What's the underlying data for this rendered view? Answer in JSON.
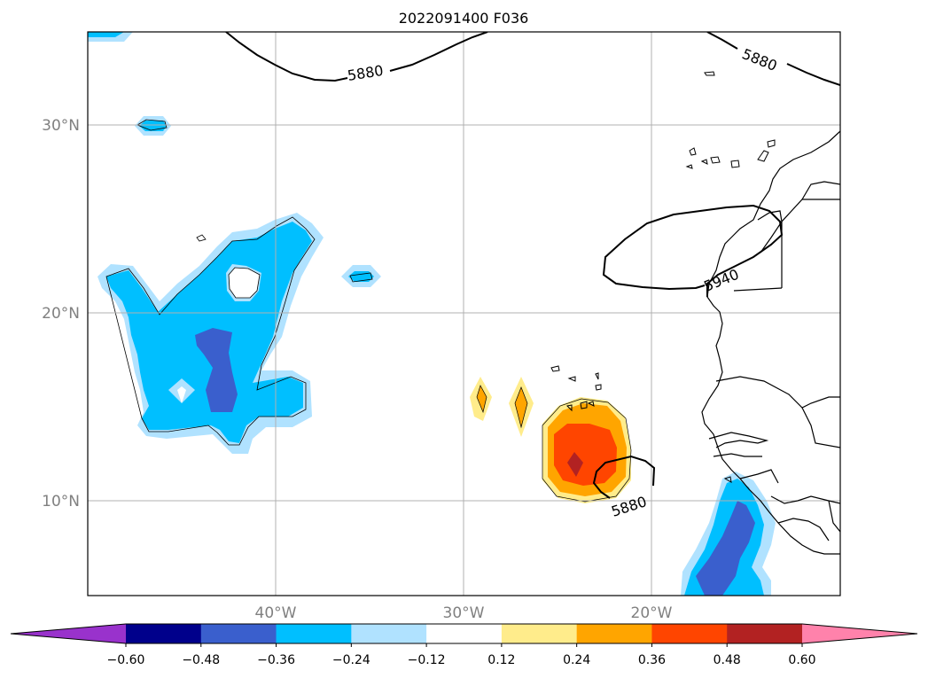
{
  "title": "2022091400 F036",
  "lat_labels": [
    "30°N",
    "20°N",
    "10°N"
  ],
  "lon_labels": [
    "40°W",
    "30°W",
    "20°W"
  ],
  "contour_labels": [
    "5880",
    "5880",
    "5940",
    "5880"
  ],
  "colorbar": {
    "ticks": [
      "−0.60",
      "−0.48",
      "−0.36",
      "−0.24",
      "−0.12",
      "0.12",
      "0.24",
      "0.36",
      "0.48",
      "0.60"
    ],
    "colors": [
      "#9932cc",
      "#00008b",
      "#3a5fcd",
      "#00bfff",
      "#b0e2ff",
      "#ffffff",
      "#ffec8b",
      "#ffa500",
      "#ff4500",
      "#b22222",
      "#ff82ab"
    ]
  }
}
